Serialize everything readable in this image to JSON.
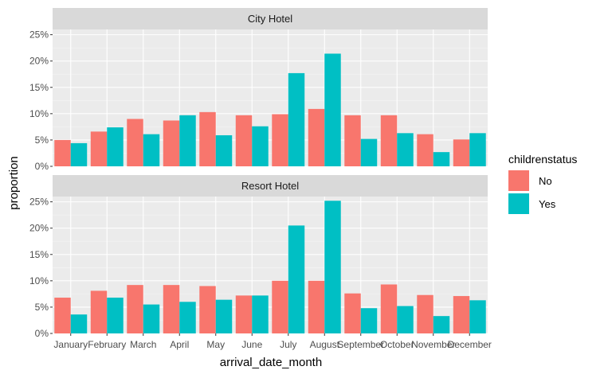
{
  "chart_data": {
    "type": "bar",
    "layout": "facets-stacked-vertically",
    "categories": [
      "January",
      "February",
      "March",
      "April",
      "May",
      "June",
      "July",
      "August",
      "September",
      "October",
      "November",
      "December"
    ],
    "xlabel": "arrival_date_month",
    "ylabel": "proportion",
    "ylim": [
      0,
      0.26
    ],
    "yticks": [
      0,
      0.05,
      0.1,
      0.15,
      0.2,
      0.25
    ],
    "ytick_labels": [
      "0%",
      "5%",
      "10%",
      "15%",
      "20%",
      "25%"
    ],
    "grid": true,
    "legend": {
      "title": "childrenstatus",
      "placement": "right",
      "entries": [
        {
          "label": "No",
          "color": "#F8766D"
        },
        {
          "label": "Yes",
          "color": "#00BFC4"
        }
      ]
    },
    "facets": [
      {
        "title": "City Hotel",
        "series": [
          {
            "name": "No",
            "values": [
              0.05,
              0.066,
              0.09,
              0.087,
              0.103,
              0.097,
              0.099,
              0.109,
              0.097,
              0.097,
              0.061,
              0.051
            ]
          },
          {
            "name": "Yes",
            "values": [
              0.044,
              0.074,
              0.061,
              0.097,
              0.059,
              0.076,
              0.177,
              0.214,
              0.052,
              0.063,
              0.027,
              0.063
            ]
          }
        ]
      },
      {
        "title": "Resort Hotel",
        "series": [
          {
            "name": "No",
            "values": [
              0.068,
              0.081,
              0.092,
              0.092,
              0.09,
              0.072,
              0.1,
              0.1,
              0.076,
              0.093,
              0.073,
              0.071
            ]
          },
          {
            "name": "Yes",
            "values": [
              0.036,
              0.068,
              0.055,
              0.06,
              0.064,
              0.072,
              0.205,
              0.252,
              0.048,
              0.052,
              0.033,
              0.063
            ]
          }
        ]
      }
    ]
  }
}
